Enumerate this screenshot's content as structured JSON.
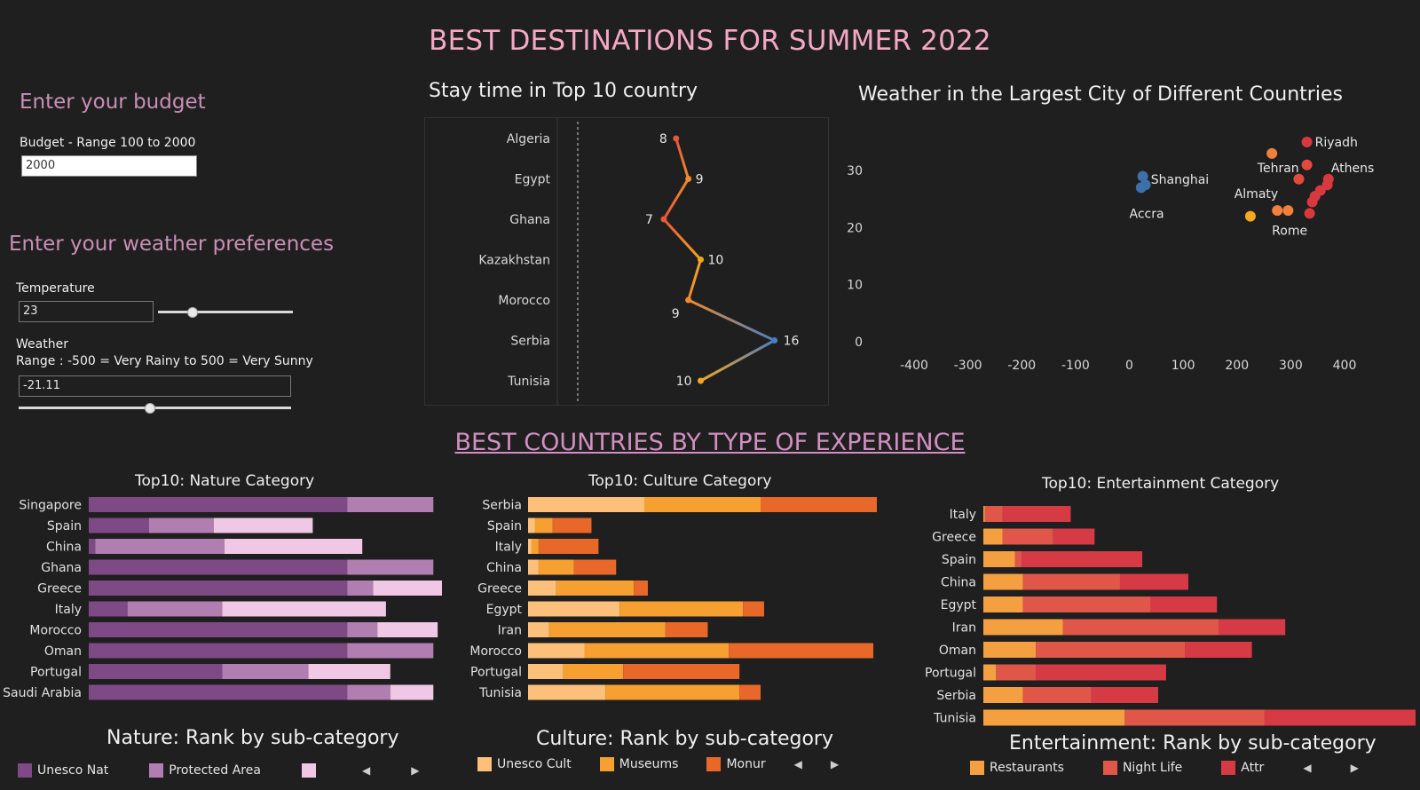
{
  "title": "BEST DESTINATIONS FOR SUMMER 2022",
  "budget": {
    "heading": "Enter your budget",
    "label": "Budget   - Range 100 to 2000",
    "value": "2000"
  },
  "weather_prefs": {
    "heading": "Enter your weather preferences",
    "temperature_label": "Temperature",
    "temperature_value": "23",
    "temperature_slider_fraction": 0.25,
    "weather_label": "Weather",
    "weather_range_label": "Range : -500 = Very Rainy to  500 = Very Sunny",
    "weather_value": "-21.11",
    "weather_slider_fraction": 0.48
  },
  "section_title": "BEST COUNTRIES BY TYPE OF EXPERIENCE",
  "chart_data": [
    {
      "id": "stay",
      "type": "line",
      "title": "Stay time in Top 10 country",
      "categories": [
        "Algeria",
        "Egypt",
        "Ghana",
        "Kazakhstan",
        "Morocco",
        "Serbia",
        "Tunisia"
      ],
      "values": [
        8,
        9,
        7,
        10,
        9,
        16,
        10
      ],
      "xlim": [
        0,
        20
      ],
      "colors": [
        "#e8573a",
        "#f08a2c",
        "#e8573a",
        "#f5a623",
        "#f08a2c",
        "#4a7fc1",
        "#f5a623"
      ]
    },
    {
      "id": "weather",
      "type": "scatter",
      "title": "Weather in the Largest City of Different Countries",
      "xlim": [
        -400,
        400
      ],
      "ylim": [
        0,
        35
      ],
      "x_ticks": [
        "-400",
        "-300",
        "-200",
        "-100",
        "0",
        "100",
        "200",
        "300",
        "400"
      ],
      "y_ticks": [
        "0",
        "10",
        "20",
        "30"
      ],
      "points": [
        {
          "x": 25,
          "y": 29,
          "color": "#3d6fa8"
        },
        {
          "x": 30,
          "y": 27.5,
          "color": "#3d6fa8"
        },
        {
          "x": 22,
          "y": 27,
          "color": "#3d6fa8"
        },
        {
          "x": 265,
          "y": 33,
          "color": "#f0803c"
        },
        {
          "x": 330,
          "y": 35,
          "color": "#d8393f"
        },
        {
          "x": 330,
          "y": 31,
          "color": "#e34a3e"
        },
        {
          "x": 315,
          "y": 28.5,
          "color": "#e34a3e"
        },
        {
          "x": 370,
          "y": 28.5,
          "color": "#d8393f"
        },
        {
          "x": 368,
          "y": 27.5,
          "color": "#d8393f"
        },
        {
          "x": 355,
          "y": 26.5,
          "color": "#d8393f"
        },
        {
          "x": 345,
          "y": 25.5,
          "color": "#d8393f"
        },
        {
          "x": 340,
          "y": 24.5,
          "color": "#d8393f"
        },
        {
          "x": 335,
          "y": 22.5,
          "color": "#d8393f"
        },
        {
          "x": 275,
          "y": 23,
          "color": "#f0803c"
        },
        {
          "x": 295,
          "y": 23,
          "color": "#f0803c"
        },
        {
          "x": 225,
          "y": 22,
          "color": "#f5a623"
        }
      ],
      "labels": [
        {
          "text": "Riyadh",
          "x": 345,
          "y": 35
        },
        {
          "text": "Tehran",
          "x": 238,
          "y": 30.5
        },
        {
          "text": "Athens",
          "x": 375,
          "y": 30.5
        },
        {
          "text": "Shanghai",
          "x": 40,
          "y": 28.5
        },
        {
          "text": "Almaty",
          "x": 195,
          "y": 26
        },
        {
          "text": "Accra",
          "x": 0,
          "y": 22.5
        },
        {
          "text": "Rome",
          "x": 265,
          "y": 19.5
        }
      ]
    },
    {
      "id": "nature",
      "type": "bar",
      "stacked": true,
      "title": "Top10: Nature Category",
      "rank_title": "Nature: Rank by sub-category",
      "categories": [
        "Singapore",
        "Spain",
        "China",
        "Ghana",
        "Greece",
        "Italy",
        "Morocco",
        "Oman",
        "Portugal",
        "Saudi Arabia"
      ],
      "series": [
        {
          "name": "Unesco Nat",
          "color": "#7e4a86",
          "values": [
            6,
            1.4,
            0.15,
            6,
            6,
            0.9,
            6,
            6,
            3.1,
            6
          ]
        },
        {
          "name": "Protected Area",
          "color": "#b07eb1",
          "values": [
            2,
            1.5,
            3,
            2,
            0.6,
            2.2,
            0.7,
            2,
            2,
            1
          ]
        },
        {
          "name": "",
          "color": "#f0c8e6",
          "values": [
            0,
            2.3,
            3.2,
            0,
            1.6,
            3.8,
            1.4,
            0,
            1.9,
            1
          ]
        }
      ]
    },
    {
      "id": "culture",
      "type": "bar",
      "stacked": true,
      "title": "Top10: Culture Category",
      "rank_title": "Culture: Rank by sub-category",
      "categories": [
        "Serbia",
        "Spain",
        "Italy",
        "China",
        "Greece",
        "Egypt",
        "Iran",
        "Morocco",
        "Portugal",
        "Tunisia"
      ],
      "series": [
        {
          "name": "Unesco Cult",
          "color": "#fcc07a",
          "values": [
            3.3,
            0.2,
            0.1,
            0.3,
            0.8,
            2.6,
            0.6,
            1.6,
            1,
            2.2
          ]
        },
        {
          "name": "Museums",
          "color": "#f5a030",
          "values": [
            3.3,
            0.5,
            0.2,
            1,
            2.2,
            3.5,
            3.3,
            4.1,
            1.7,
            3.8
          ]
        },
        {
          "name": "Monur",
          "color": "#e8682a",
          "values": [
            3.3,
            1.1,
            1.7,
            1.2,
            0.4,
            0.6,
            1.2,
            4.1,
            3.3,
            0.6
          ]
        }
      ]
    },
    {
      "id": "entertainment",
      "type": "bar",
      "stacked": true,
      "title": "Top10: Entertainment Category",
      "rank_title": "Entertainment: Rank by sub-category",
      "categories": [
        "Italy",
        "Greece",
        "Spain",
        "China",
        "Egypt",
        "Iran",
        "Oman",
        "Portugal",
        "Serbia",
        "Tunisia"
      ],
      "series": [
        {
          "name": "Restaurants",
          "color": "#f5a040",
          "values": [
            0.1,
            1.2,
            2,
            2.5,
            2.5,
            5,
            3.3,
            0.8,
            2.5,
            8.9
          ]
        },
        {
          "name": "Night Life",
          "color": "#e0574a",
          "values": [
            1.1,
            3.2,
            0.4,
            6.1,
            8,
            9.8,
            9.4,
            2.5,
            4.3,
            8.8
          ]
        },
        {
          "name": "Attr",
          "color": "#d63a45",
          "values": [
            4.3,
            2.6,
            7.6,
            4.3,
            4.2,
            4.2,
            4.2,
            8.2,
            4.2,
            9.5
          ]
        }
      ]
    }
  ]
}
